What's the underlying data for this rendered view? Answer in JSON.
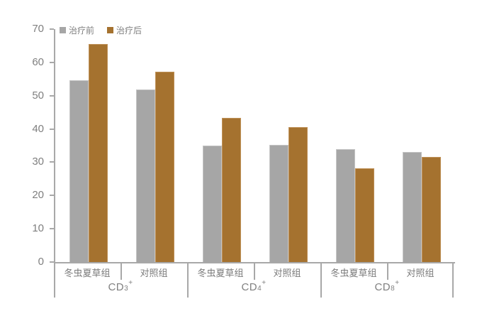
{
  "chart_data": {
    "type": "bar",
    "title": "",
    "xlabel": "",
    "ylabel": "",
    "ylim": [
      0,
      70
    ],
    "yticks": [
      0,
      10,
      20,
      30,
      40,
      50,
      60,
      70
    ],
    "grid": false,
    "legend_position": "top-left",
    "axis_color": "#a8a8a8",
    "tick_label_color": "#7f7f7f",
    "category_label_color": "#7a7a7a",
    "categories": [
      "冬虫夏草组",
      "对照组",
      "冬虫夏草组",
      "对照组",
      "冬虫夏草组",
      "对照组"
    ],
    "groups": [
      {
        "base": "CD",
        "sub": "3",
        "sup": "+",
        "subcategories": [
          "冬虫夏草组",
          "对照组"
        ]
      },
      {
        "base": "CD",
        "sub": "4",
        "sup": "+",
        "subcategories": [
          "冬虫夏草组",
          "对照组"
        ]
      },
      {
        "base": "CD",
        "sub": "8",
        "sup": "+",
        "subcategories": [
          "冬虫夏草组",
          "对照组"
        ]
      }
    ],
    "series": [
      {
        "name": "治疗前",
        "color": "#a6a6a6",
        "border_color": "#c4c4c4",
        "values": [
          54.7,
          51.8,
          34.9,
          35.3,
          33.9,
          33.1
        ]
      },
      {
        "name": "治疗后",
        "color": "#a5722f",
        "border_color": "#bf9158",
        "values": [
          65.6,
          57.3,
          43.3,
          40.6,
          28.1,
          31.5
        ]
      }
    ]
  }
}
